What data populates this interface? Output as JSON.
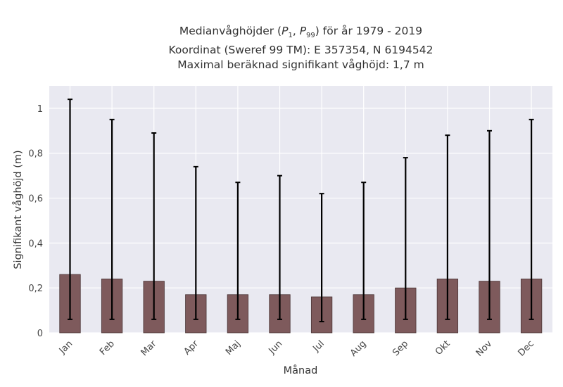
{
  "title": {
    "line1_prefix": "Medianvåghöjder (",
    "p_low_main": "P",
    "p_low_sub": "1",
    "p_sep": ", ",
    "p_high_main": "P",
    "p_high_sub": "99",
    "line1_suffix": ") för år 1979 - 2019",
    "line2": "Koordinat (Sweref 99 TM): E 357354, N 6194542",
    "line3": "Maximal beräknad signifikant våghöjd: 1,7 m"
  },
  "colors": {
    "plot_background": "#e9e9f1",
    "grid": "#ffffff",
    "bar_fill": "#7e5a5c",
    "bar_edge": "#4a3536",
    "error_bar": "#000000"
  },
  "chart_data": {
    "type": "bar",
    "categories": [
      "Jan",
      "Feb",
      "Mar",
      "Apr",
      "Maj",
      "Jun",
      "Jul",
      "Aug",
      "Sep",
      "Okt",
      "Nov",
      "Dec"
    ],
    "values": [
      0.26,
      0.24,
      0.23,
      0.17,
      0.17,
      0.17,
      0.16,
      0.17,
      0.2,
      0.24,
      0.23,
      0.24
    ],
    "error_low": [
      0.06,
      0.06,
      0.06,
      0.06,
      0.06,
      0.06,
      0.05,
      0.06,
      0.06,
      0.06,
      0.06,
      0.06
    ],
    "error_high": [
      1.04,
      0.95,
      0.89,
      0.74,
      0.67,
      0.7,
      0.62,
      0.67,
      0.78,
      0.88,
      0.9,
      0.95
    ],
    "xlabel": "Månad",
    "ylabel": "Signifikant våghöjd (m)",
    "ylim": [
      0,
      1.1
    ],
    "yticks": [
      0,
      0.2,
      0.4,
      0.6,
      0.8,
      1.0
    ],
    "ytick_labels": [
      "0",
      "0,2",
      "0,4",
      "0,6",
      "0,8",
      "1"
    ],
    "grid": true,
    "legend": false
  }
}
